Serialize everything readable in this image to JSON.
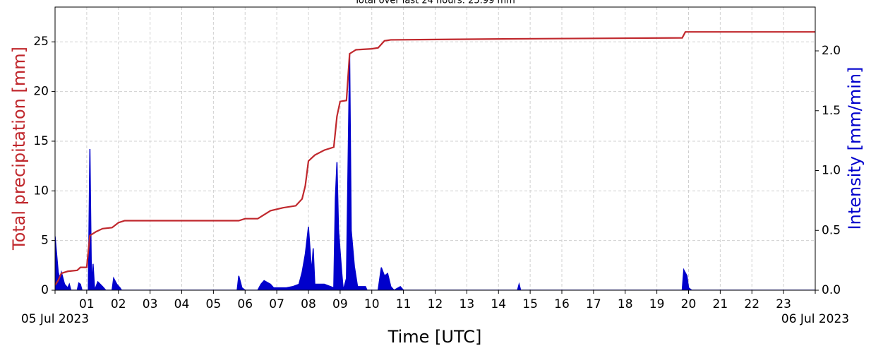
{
  "chart_data": {
    "type": "line",
    "title": "Total over last 24 hours: 25.99 mm",
    "xlabel": "Time [UTC]",
    "ylabel": "Total precipitation [mm]",
    "y2label": "Intensity [mm/min]",
    "xlim": [
      0,
      24
    ],
    "xticks": [
      {
        "value": 0,
        "label": "05 Jul 2023"
      },
      {
        "value": 1,
        "label": "01"
      },
      {
        "value": 2,
        "label": "02"
      },
      {
        "value": 3,
        "label": "03"
      },
      {
        "value": 4,
        "label": "04"
      },
      {
        "value": 5,
        "label": "05"
      },
      {
        "value": 6,
        "label": "06"
      },
      {
        "value": 7,
        "label": "07"
      },
      {
        "value": 8,
        "label": "08"
      },
      {
        "value": 9,
        "label": "09"
      },
      {
        "value": 10,
        "label": "10"
      },
      {
        "value": 11,
        "label": "11"
      },
      {
        "value": 12,
        "label": "12"
      },
      {
        "value": 13,
        "label": "13"
      },
      {
        "value": 14,
        "label": "14"
      },
      {
        "value": 15,
        "label": "15"
      },
      {
        "value": 16,
        "label": "16"
      },
      {
        "value": 17,
        "label": "17"
      },
      {
        "value": 18,
        "label": "18"
      },
      {
        "value": 19,
        "label": "19"
      },
      {
        "value": 20,
        "label": "20"
      },
      {
        "value": 21,
        "label": "21"
      },
      {
        "value": 22,
        "label": "22"
      },
      {
        "value": 23,
        "label": "23"
      },
      {
        "value": 24,
        "label": "06 Jul 2023"
      }
    ],
    "ylim": [
      0,
      28.5
    ],
    "yticks": [
      0,
      5,
      10,
      15,
      20,
      25
    ],
    "y2lim": [
      0,
      2.366
    ],
    "y2ticks": [
      {
        "value": 0,
        "label": "0.0"
      },
      {
        "value": 0.5,
        "label": "0.5"
      },
      {
        "value": 1,
        "label": "1.0"
      },
      {
        "value": 1.5,
        "label": "1.5"
      },
      {
        "value": 2,
        "label": "2.0"
      }
    ],
    "grid": true,
    "series": [
      {
        "name": "Total precipitation",
        "color": "#c0282d",
        "style": "line",
        "x": [
          0,
          0.1,
          0.2,
          0.4,
          0.7,
          0.8,
          1.0,
          1.1,
          1.3,
          1.5,
          1.8,
          2.0,
          2.2,
          5.8,
          6.0,
          6.4,
          6.8,
          7.2,
          7.6,
          7.8,
          7.9,
          8.0,
          8.2,
          8.5,
          8.8,
          8.9,
          9.0,
          9.2,
          9.3,
          9.5,
          10.0,
          10.2,
          10.4,
          10.6,
          14.5,
          19.8,
          19.9,
          24
        ],
        "values": [
          0.5,
          1.0,
          1.7,
          1.9,
          2.0,
          2.3,
          2.3,
          5.5,
          5.9,
          6.2,
          6.3,
          6.8,
          7.0,
          7.0,
          7.2,
          7.2,
          8.0,
          8.3,
          8.5,
          9.2,
          10.5,
          13.0,
          13.6,
          14.1,
          14.4,
          17.5,
          19.0,
          19.1,
          23.8,
          24.2,
          24.3,
          24.4,
          25.1,
          25.2,
          25.3,
          25.4,
          26.0,
          26.0
        ]
      },
      {
        "name": "Intensity",
        "color": "#0000cc",
        "style": "area",
        "axis": "y2",
        "x": [
          0,
          0.05,
          0.1,
          0.15,
          0.2,
          0.3,
          0.4,
          0.45,
          0.5,
          0.7,
          0.75,
          0.8,
          0.85,
          1.05,
          1.1,
          1.15,
          1.2,
          1.25,
          1.35,
          1.5,
          1.6,
          1.8,
          1.85,
          1.95,
          2.05,
          2.1,
          5.75,
          5.8,
          5.9,
          6.0,
          6.4,
          6.5,
          6.6,
          6.8,
          6.9,
          7.3,
          7.5,
          7.7,
          7.8,
          7.9,
          8.0,
          8.1,
          8.15,
          8.2,
          8.5,
          8.8,
          8.85,
          8.9,
          8.95,
          9.05,
          9.1,
          9.2,
          9.3,
          9.35,
          9.45,
          9.55,
          9.8,
          9.85,
          10.2,
          10.3,
          10.4,
          10.5,
          10.6,
          10.7,
          10.9,
          11,
          14.6,
          14.65,
          14.7,
          19.8,
          19.85,
          19.95,
          20.0,
          20.1,
          24
        ],
        "values": [
          0.45,
          0.3,
          0.15,
          0.1,
          0.15,
          0.05,
          0.02,
          0.05,
          0,
          0,
          0.06,
          0.05,
          0,
          0,
          1.18,
          0.05,
          0.22,
          0,
          0.07,
          0.03,
          0,
          0,
          0.1,
          0.05,
          0.02,
          0,
          0,
          0.12,
          0.02,
          0,
          0,
          0.05,
          0.08,
          0.05,
          0.02,
          0.02,
          0.03,
          0.05,
          0.15,
          0.3,
          0.53,
          0.15,
          0.35,
          0.05,
          0.05,
          0.02,
          0.77,
          1.07,
          0.5,
          0.15,
          0,
          0.1,
          1.98,
          0.5,
          0.2,
          0.03,
          0.03,
          0,
          0,
          0.19,
          0.12,
          0.14,
          0.03,
          0,
          0.03,
          0,
          0,
          0.05,
          0,
          0,
          0.17,
          0.12,
          0.02,
          0,
          0
        ]
      }
    ]
  }
}
